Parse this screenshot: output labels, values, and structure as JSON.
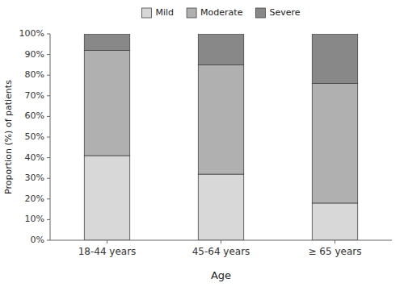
{
  "chart_data": {
    "type": "bar",
    "stacked": true,
    "categories": [
      "18-44 years",
      "45-64 years",
      "≥ 65 years"
    ],
    "series": [
      {
        "name": "Mild",
        "color": "#d8d8d8",
        "values": [
          41,
          32,
          18
        ]
      },
      {
        "name": "Moderate",
        "color": "#b0b0b0",
        "values": [
          51,
          53,
          58
        ]
      },
      {
        "name": "Severe",
        "color": "#888888",
        "values": [
          8,
          15,
          24
        ]
      }
    ],
    "xlabel": "Age",
    "ylabel": "Proportion (%) of patients",
    "ylim": [
      0,
      100
    ],
    "yticks": [
      {
        "value": 0,
        "label": "0%"
      },
      {
        "value": 10,
        "label": "10%"
      },
      {
        "value": 20,
        "label": "20%"
      },
      {
        "value": 30,
        "label": "30%"
      },
      {
        "value": 40,
        "label": "40%"
      },
      {
        "value": 50,
        "label": "50%"
      },
      {
        "value": 60,
        "label": "60%"
      },
      {
        "value": 70,
        "label": "70%"
      },
      {
        "value": 80,
        "label": "80%"
      },
      {
        "value": 90,
        "label": "90%"
      },
      {
        "value": 100,
        "label": "100%"
      }
    ],
    "grid": false,
    "legend": "top"
  }
}
